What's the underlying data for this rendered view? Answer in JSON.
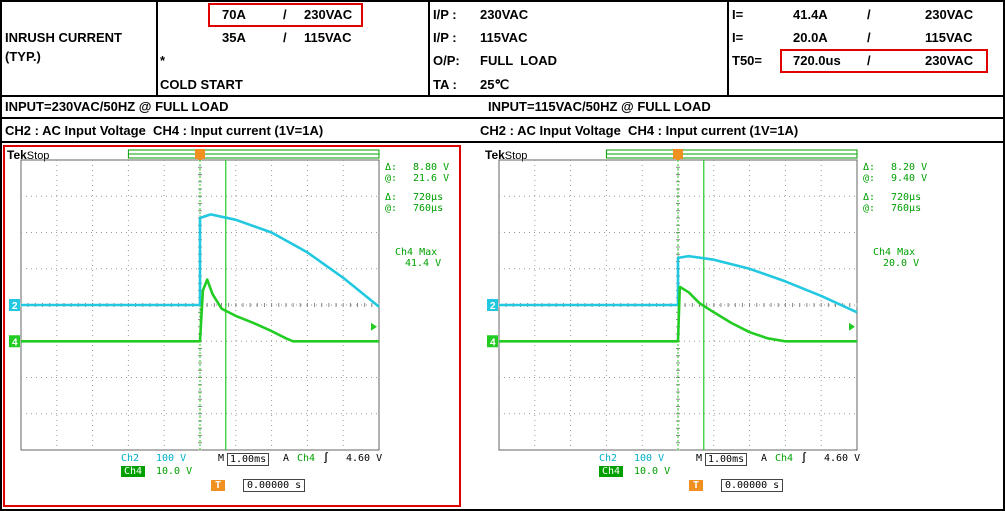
{
  "header": {
    "title": "INRUSH CURRENT",
    "title_sub": "(TYP.)",
    "rows": [
      {
        "current": "70A",
        "sep": "/",
        "voltage": "230VAC"
      },
      {
        "current": "35A",
        "sep": "/",
        "voltage": "115VAC"
      }
    ],
    "star": "*",
    "cold_start": "COLD START",
    "conditions": [
      {
        "label": "I/P :",
        "value": "230VAC"
      },
      {
        "label": "I/P :",
        "value": "115VAC"
      },
      {
        "label": "O/P:",
        "value": "FULL  LOAD"
      },
      {
        "label": "TA :",
        "value": "25℃"
      }
    ],
    "results": [
      {
        "label": "I=",
        "value": "41.4A",
        "sep": "/",
        "voltage": "230VAC"
      },
      {
        "label": "I=",
        "value": "20.0A",
        "sep": "/",
        "voltage": "115VAC"
      },
      {
        "label": "T50=",
        "value": "720.0us",
        "sep": "/",
        "voltage": "230VAC"
      }
    ]
  },
  "input_left": "INPUT=230VAC/50HZ @ FULL LOAD",
  "input_right": "INPUT=115VAC/50HZ @ FULL LOAD",
  "channel_left": "CH2 : AC Input Voltage  CH4 : Input current (1V=1A)",
  "channel_right": "CH2 : AC Input Voltage  CH4 : Input current (1V=1A)",
  "colors": {
    "ch2": "#22c8e0",
    "ch4": "#22cc22",
    "highlight": "#e00000"
  },
  "chart_data": [
    {
      "type": "line",
      "scope_brand": "Tek",
      "scope_status": "Stop",
      "readouts": {
        "delta_v_sym": "Δ:",
        "delta_v": "8.80 V",
        "at_v_sym": "@:",
        "at_v": "21.6 V",
        "delta_t_sym": "Δ:",
        "delta_t": "720µs",
        "at_t_sym": "@:",
        "at_t": "760µs",
        "max_label": "Ch4 Max",
        "max_value": "41.4 V"
      },
      "settings": {
        "ch2_label": "Ch2",
        "ch2_scale": "100 V",
        "ch4_label": "Ch4",
        "ch4_scale": "10.0 V",
        "m_label": "M",
        "timebase": "1.00ms",
        "a_label": "A",
        "trig_ch": "Ch4",
        "trig_level": "4.60 V",
        "trig_pos": "0.00000 s"
      },
      "series": [
        {
          "channel": "Ch2",
          "x": [
            -5.0,
            0.0,
            0.0,
            0.3,
            1.0,
            2.0,
            3.0,
            4.0,
            5.0
          ],
          "y": [
            0.0,
            0.0,
            2.4,
            2.5,
            2.35,
            2.0,
            1.45,
            0.75,
            -0.05
          ]
        },
        {
          "channel": "Ch4",
          "x": [
            -5.0,
            0.0,
            0.08,
            0.2,
            0.35,
            0.6,
            1.0,
            1.5,
            2.0,
            2.4,
            2.6,
            3.0,
            4.0,
            5.0
          ],
          "y": [
            -1.0,
            -1.0,
            0.4,
            0.7,
            0.3,
            -0.1,
            -0.3,
            -0.5,
            -0.72,
            -0.92,
            -1.0,
            -1.0,
            -1.0,
            -1.0
          ]
        }
      ],
      "cursor_time_ms": 0.72,
      "xlim": [
        -5,
        5
      ],
      "ylim": [
        -4,
        4
      ],
      "ch2_ground": 0,
      "ch4_ground": -1,
      "highlighted": true
    },
    {
      "type": "line",
      "scope_brand": "Tek",
      "scope_status": "Stop",
      "readouts": {
        "delta_v_sym": "Δ:",
        "delta_v": "8.20 V",
        "at_v_sym": "@:",
        "at_v": "9.40 V",
        "delta_t_sym": "Δ:",
        "delta_t": "720µs",
        "at_t_sym": "@:",
        "at_t": "760µs",
        "max_label": "Ch4 Max",
        "max_value": "20.0 V"
      },
      "settings": {
        "ch2_label": "Ch2",
        "ch2_scale": "100 V",
        "ch4_label": "Ch4",
        "ch4_scale": "10.0 V",
        "m_label": "M",
        "timebase": "1.00ms",
        "a_label": "A",
        "trig_ch": "Ch4",
        "trig_level": "4.60 V",
        "trig_pos": "0.00000 s"
      },
      "series": [
        {
          "channel": "Ch2",
          "x": [
            -5.0,
            0.0,
            0.0,
            0.3,
            1.0,
            2.0,
            3.0,
            4.0,
            5.0
          ],
          "y": [
            0.0,
            0.0,
            1.3,
            1.35,
            1.25,
            1.0,
            0.65,
            0.25,
            -0.2
          ]
        },
        {
          "channel": "Ch4",
          "x": [
            -5.0,
            0.0,
            0.05,
            0.3,
            0.6,
            1.0,
            1.5,
            2.0,
            2.5,
            3.0,
            4.0,
            5.0
          ],
          "y": [
            -1.0,
            -1.0,
            0.5,
            0.35,
            0.05,
            -0.2,
            -0.5,
            -0.75,
            -0.92,
            -1.0,
            -1.0,
            -1.0
          ]
        }
      ],
      "cursor_time_ms": 0.72,
      "xlim": [
        -5,
        5
      ],
      "ylim": [
        -4,
        4
      ],
      "ch2_ground": 0,
      "ch4_ground": -1,
      "highlighted": false
    }
  ]
}
